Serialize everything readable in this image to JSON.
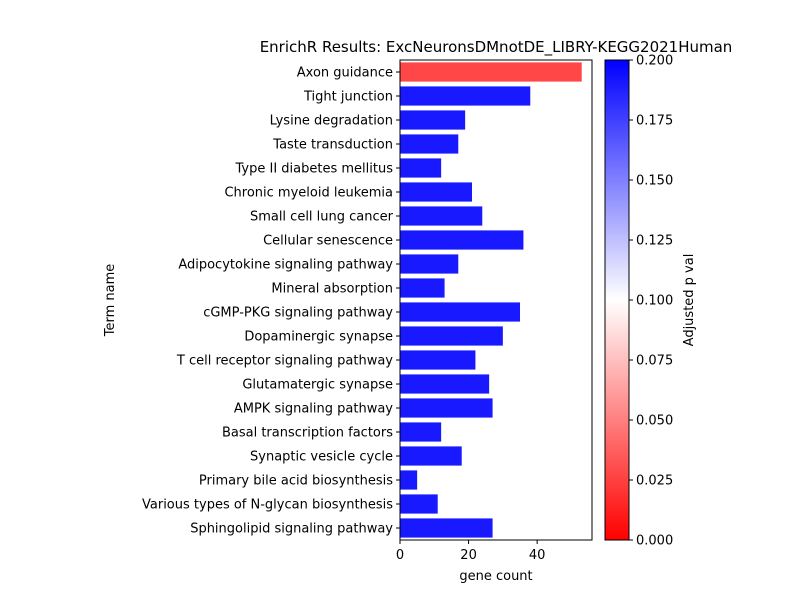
{
  "chart_data": {
    "type": "bar",
    "orientation": "horizontal",
    "title": "EnrichR Results: ExcNeuronsDMnotDE_LIBRY-KEGG2021Human",
    "xlabel": "gene count",
    "ylabel": "Term name",
    "xlim": [
      0,
      56
    ],
    "xticks": [
      0,
      20,
      40
    ],
    "grid": false,
    "categories": [
      "Axon guidance",
      "Tight junction",
      "Lysine degradation",
      "Taste transduction",
      "Type II diabetes mellitus",
      "Chronic myeloid leukemia",
      "Small cell lung cancer",
      "Cellular senescence",
      "Adipocytokine signaling pathway",
      "Mineral absorption",
      "cGMP-PKG signaling pathway",
      "Dopaminergic synapse",
      "T cell receptor signaling pathway",
      "Glutamatergic synapse",
      "AMPK signaling pathway",
      "Basal transcription factors",
      "Synaptic vesicle cycle",
      "Primary bile acid biosynthesis",
      "Various types of N-glycan biosynthesis",
      "Sphingolipid signaling pathway"
    ],
    "values": [
      53,
      38,
      19,
      17,
      12,
      21,
      24,
      36,
      17,
      13,
      35,
      30,
      22,
      26,
      27,
      12,
      18,
      5,
      11,
      27
    ],
    "adjusted_p_values": [
      0.02,
      0.2,
      0.2,
      0.2,
      0.2,
      0.2,
      0.2,
      0.2,
      0.2,
      0.2,
      0.2,
      0.2,
      0.2,
      0.2,
      0.2,
      0.2,
      0.2,
      0.2,
      0.2,
      0.2
    ],
    "colorbar": {
      "label": "Adjusted p val",
      "range": [
        0.0,
        0.2
      ],
      "ticks": [
        "0.000",
        "0.025",
        "0.050",
        "0.075",
        "0.100",
        "0.125",
        "0.150",
        "0.175",
        "0.200"
      ],
      "colors": [
        "#ff0000",
        "#ffffff",
        "#0000ff"
      ]
    }
  }
}
